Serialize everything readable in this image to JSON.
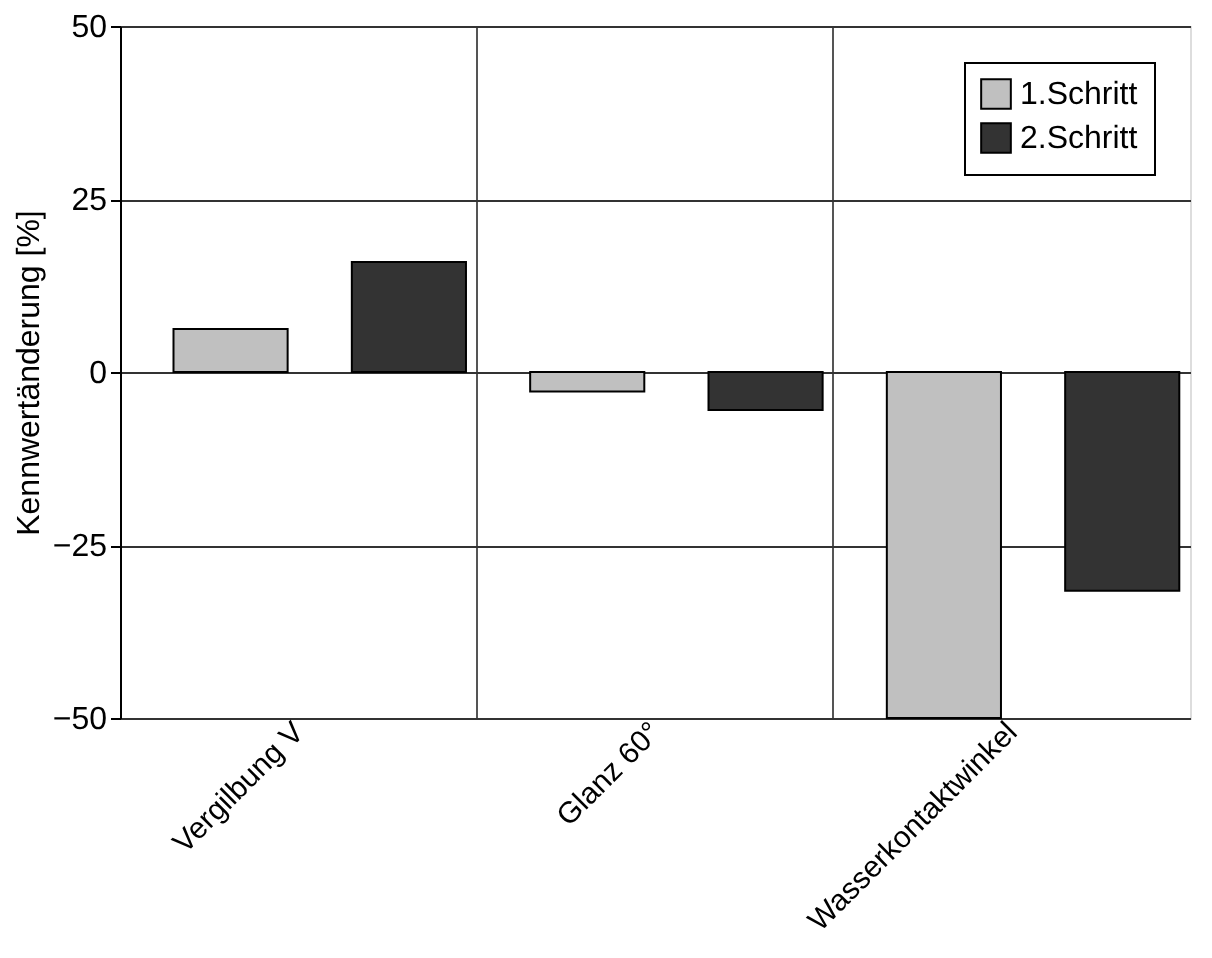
{
  "chart_data": {
    "type": "bar",
    "ylabel": "Kennwertänderung [%]",
    "categories": [
      "Vergilbung V",
      "Glanz 60°",
      "Wasserkontaktwinkel"
    ],
    "series": [
      {
        "name": "1.Schritt",
        "color": "#c0c0c0",
        "values": [
          6.2,
          -2.8,
          -50
        ]
      },
      {
        "name": "2.Schritt",
        "color": "#333333",
        "values": [
          15.9,
          -5.5,
          -31.6
        ]
      }
    ],
    "ylim": [
      -50,
      50
    ],
    "yticks": [
      -50,
      -25,
      0,
      25,
      50
    ],
    "grid": true,
    "legend": "top right"
  }
}
